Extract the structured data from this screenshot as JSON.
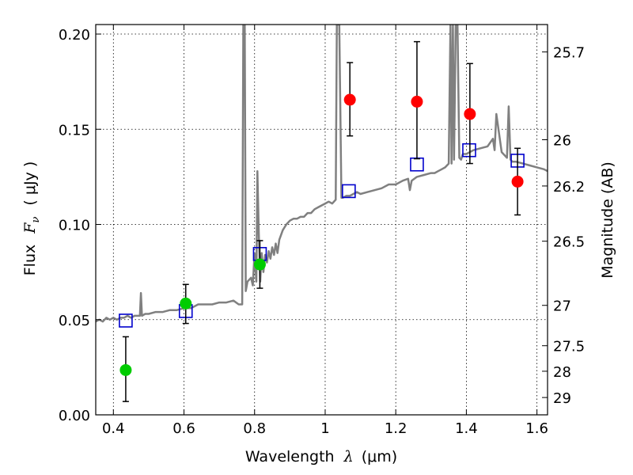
{
  "chart_data": {
    "type": "scatter",
    "xlabel_prefix": "Wavelength",
    "xlabel_symbol": "λ",
    "xlabel_unit": "(μm)",
    "ylabel_prefix": "Flux",
    "ylabel_symbol": "F",
    "ylabel_subscript": "ν",
    "ylabel_unit": "( μJy )",
    "y2label": "Magnitude (AB)",
    "xlim": [
      0.35,
      1.63
    ],
    "ylim": [
      0.0,
      0.205
    ],
    "xticks": [
      0.4,
      0.6,
      0.8,
      1.0,
      1.2,
      1.4,
      1.6
    ],
    "xtick_labels": [
      "0.4",
      "0.6",
      "0.8",
      "1",
      "1.2",
      "1.4",
      "1.6"
    ],
    "yticks": [
      0.0,
      0.05,
      0.1,
      0.15,
      0.2
    ],
    "ytick_labels": [
      "0.00",
      "0.05",
      "0.10",
      "0.15",
      "0.20"
    ],
    "y2ticks": [
      {
        "label": "25.7",
        "flux": 0.1906
      },
      {
        "label": "26",
        "flux": 0.1445
      },
      {
        "label": "26.2",
        "flux": 0.1202
      },
      {
        "label": "26.5",
        "flux": 0.0912
      },
      {
        "label": "27",
        "flux": 0.0575
      },
      {
        "label": "27.5",
        "flux": 0.0363
      },
      {
        "label": "28",
        "flux": 0.0229
      },
      {
        "label": "29",
        "flux": 0.0091
      }
    ],
    "grid": true,
    "spectrum": {
      "color": "#808080",
      "x": [
        0.35,
        0.36,
        0.37,
        0.38,
        0.39,
        0.4,
        0.41,
        0.42,
        0.43,
        0.44,
        0.45,
        0.46,
        0.47,
        0.475,
        0.478,
        0.481,
        0.49,
        0.5,
        0.52,
        0.54,
        0.56,
        0.58,
        0.6,
        0.62,
        0.64,
        0.66,
        0.68,
        0.7,
        0.72,
        0.74,
        0.755,
        0.765,
        0.768,
        0.77,
        0.772,
        0.775,
        0.78,
        0.79,
        0.795,
        0.8,
        0.805,
        0.808,
        0.812,
        0.816,
        0.82,
        0.825,
        0.83,
        0.835,
        0.84,
        0.845,
        0.85,
        0.855,
        0.86,
        0.865,
        0.87,
        0.88,
        0.89,
        0.9,
        0.91,
        0.92,
        0.93,
        0.94,
        0.95,
        0.96,
        0.97,
        0.98,
        0.99,
        1.0,
        1.01,
        1.02,
        1.03,
        1.033,
        1.036,
        1.04,
        1.046,
        1.05,
        1.06,
        1.07,
        1.08,
        1.09,
        1.1,
        1.12,
        1.14,
        1.16,
        1.18,
        1.2,
        1.22,
        1.235,
        1.24,
        1.245,
        1.26,
        1.28,
        1.3,
        1.31,
        1.32,
        1.33,
        1.34,
        1.35,
        1.355,
        1.358,
        1.362,
        1.365,
        1.37,
        1.375,
        1.38,
        1.385,
        1.39,
        1.4,
        1.42,
        1.44,
        1.46,
        1.475,
        1.48,
        1.485,
        1.5,
        1.515,
        1.52,
        1.525,
        1.53,
        1.54,
        1.56,
        1.58,
        1.6,
        1.62,
        1.63
      ],
      "y": [
        0.049,
        0.05,
        0.049,
        0.051,
        0.05,
        0.051,
        0.05,
        0.051,
        0.051,
        0.052,
        0.051,
        0.052,
        0.052,
        0.052,
        0.064,
        0.052,
        0.053,
        0.053,
        0.054,
        0.054,
        0.055,
        0.055,
        0.056,
        0.056,
        0.058,
        0.058,
        0.058,
        0.059,
        0.059,
        0.06,
        0.058,
        0.058,
        0.205,
        0.205,
        0.205,
        0.065,
        0.07,
        0.072,
        0.068,
        0.085,
        0.07,
        0.128,
        0.095,
        0.07,
        0.085,
        0.075,
        0.084,
        0.08,
        0.086,
        0.082,
        0.088,
        0.084,
        0.09,
        0.085,
        0.092,
        0.097,
        0.1,
        0.102,
        0.103,
        0.103,
        0.104,
        0.104,
        0.106,
        0.106,
        0.108,
        0.109,
        0.11,
        0.111,
        0.112,
        0.111,
        0.113,
        0.205,
        0.205,
        0.205,
        0.114,
        0.114,
        0.115,
        0.115,
        0.116,
        0.117,
        0.116,
        0.117,
        0.118,
        0.119,
        0.121,
        0.121,
        0.123,
        0.124,
        0.118,
        0.123,
        0.125,
        0.126,
        0.127,
        0.127,
        0.128,
        0.129,
        0.13,
        0.132,
        0.205,
        0.132,
        0.205,
        0.134,
        0.205,
        0.205,
        0.135,
        0.134,
        0.137,
        0.137,
        0.139,
        0.14,
        0.141,
        0.145,
        0.139,
        0.158,
        0.138,
        0.135,
        0.162,
        0.134,
        0.133,
        0.133,
        0.132,
        0.131,
        0.13,
        0.129,
        0.128
      ]
    },
    "model_points": {
      "color": "#0000cc",
      "marker": "open-square",
      "x": [
        0.435,
        0.605,
        0.815,
        1.067,
        1.26,
        1.408,
        1.545
      ],
      "y": [
        0.0495,
        0.0545,
        0.0845,
        0.1175,
        0.1315,
        0.139,
        0.1335
      ]
    },
    "observed_green": {
      "color": "#00cc00",
      "marker": "filled-circle",
      "x": [
        0.435,
        0.605,
        0.815
      ],
      "y": [
        0.0235,
        0.0585,
        0.079
      ],
      "err_low": [
        0.0165,
        0.0105,
        0.0125
      ],
      "err_high": [
        0.0175,
        0.01,
        0.0125
      ]
    },
    "observed_red": {
      "color": "#ff0000",
      "marker": "filled-circle",
      "x": [
        1.07,
        1.26,
        1.41,
        1.545
      ],
      "y": [
        0.1655,
        0.1645,
        0.158,
        0.1225
      ],
      "err_low": [
        0.019,
        0.03,
        0.026,
        0.0175
      ],
      "err_high": [
        0.0195,
        0.0315,
        0.0265,
        0.0175
      ]
    }
  }
}
